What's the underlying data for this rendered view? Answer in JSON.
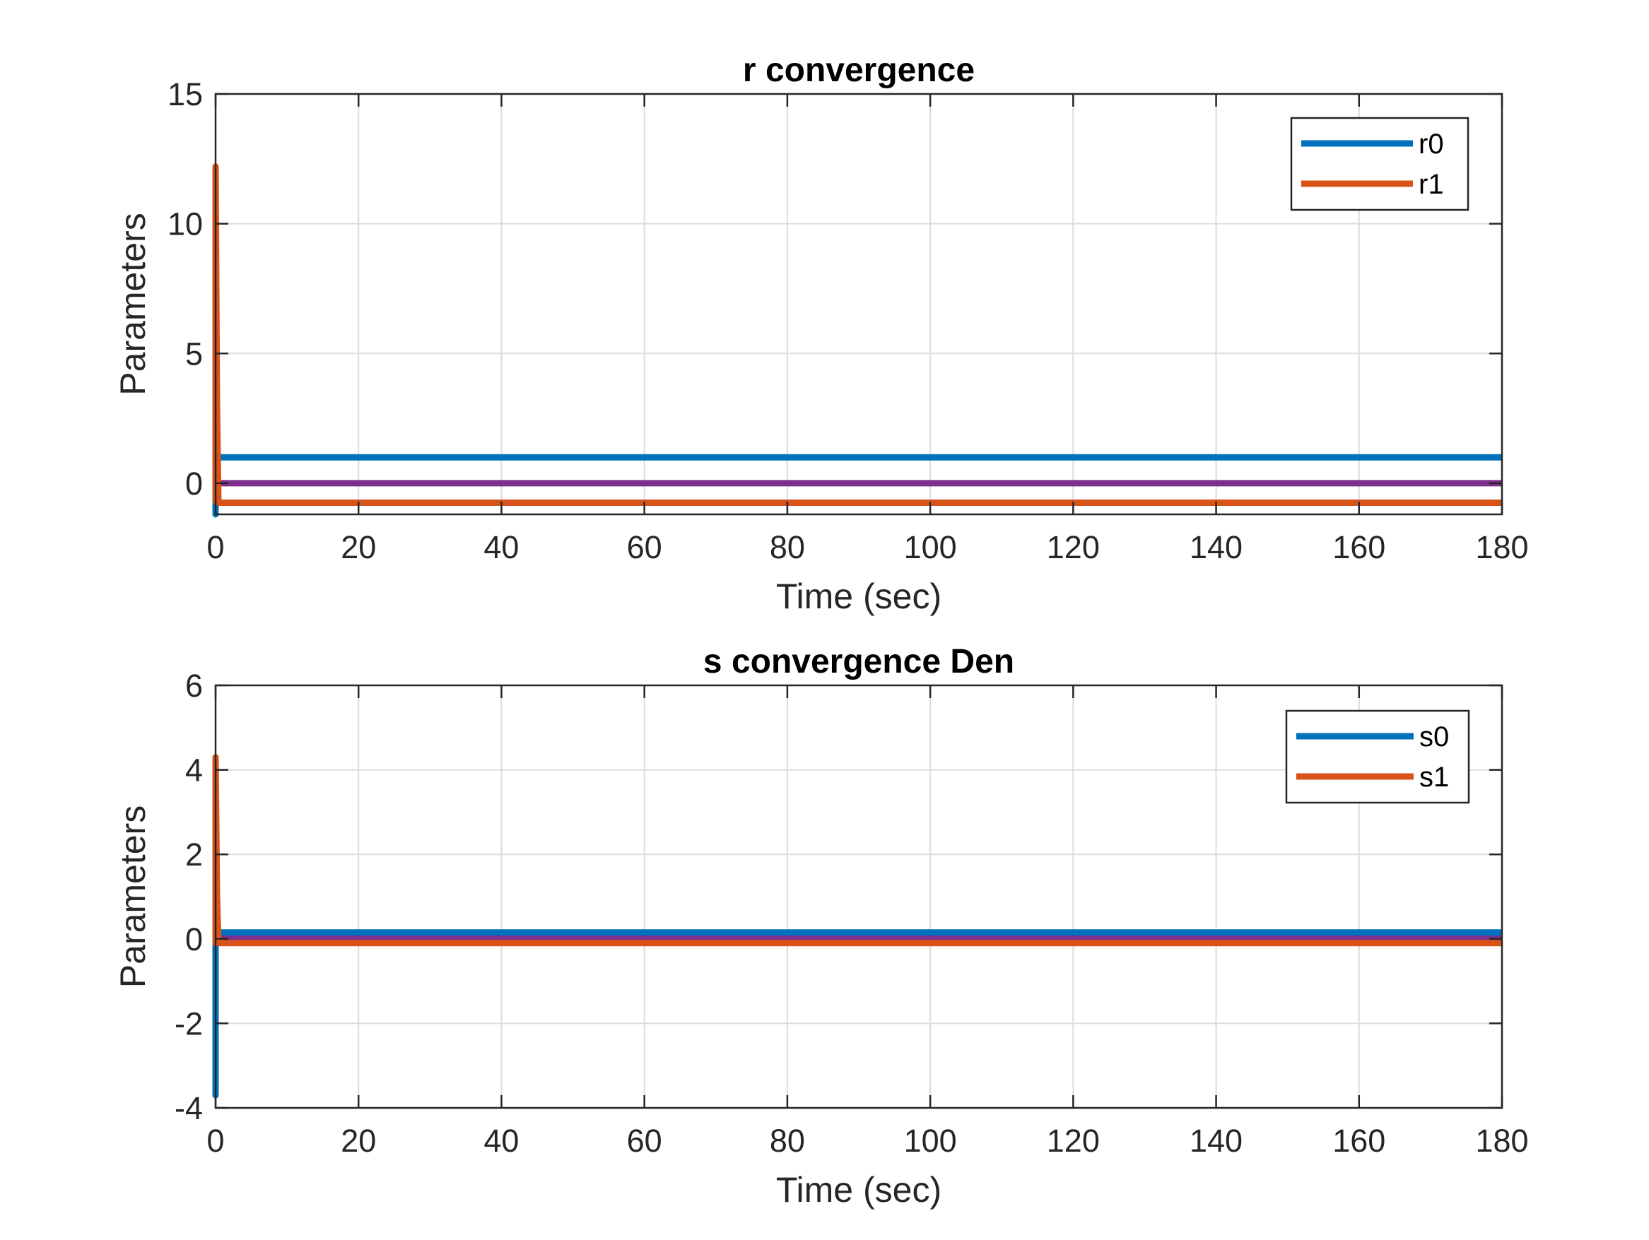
{
  "chart_data": [
    {
      "type": "line",
      "title": "r convergence",
      "xlabel": "Time (sec)",
      "ylabel": "Parameters",
      "xlim": [
        0,
        180
      ],
      "ylim": [
        -1.2,
        15
      ],
      "xticks": [
        0,
        20,
        40,
        60,
        80,
        100,
        120,
        140,
        160,
        180
      ],
      "yticks": [
        0,
        5,
        10,
        15
      ],
      "grid": true,
      "legend_position": "top-right",
      "series": [
        {
          "name": "r0",
          "color": "#0072BD",
          "legend": true,
          "x": [
            0,
            0,
            0.2,
            0.4,
            180
          ],
          "y": [
            -1.2,
            0.5,
            1.0,
            1.0,
            1.0
          ]
        },
        {
          "name": "r1",
          "color": "#D95319",
          "legend": true,
          "x": [
            0,
            0,
            0.2,
            0.4,
            180
          ],
          "y": [
            -0.7,
            12.2,
            3.0,
            -0.75,
            -0.75
          ]
        },
        {
          "name": "",
          "color": "#7E2F8E",
          "legend": false,
          "x": [
            0,
            0.4,
            180
          ],
          "y": [
            0,
            0,
            0
          ]
        }
      ]
    },
    {
      "type": "line",
      "title": "s convergence Den",
      "xlabel": "Time (sec)",
      "ylabel": "Parameters",
      "xlim": [
        0,
        180
      ],
      "ylim": [
        -4,
        6
      ],
      "xticks": [
        0,
        20,
        40,
        60,
        80,
        100,
        120,
        140,
        160,
        180
      ],
      "yticks": [
        -4,
        -2,
        0,
        2,
        4,
        6
      ],
      "grid": true,
      "legend_position": "top-right",
      "series": [
        {
          "name": "s0",
          "color": "#0072BD",
          "legend": true,
          "x": [
            0,
            0,
            0.2,
            0.4,
            180
          ],
          "y": [
            -3.7,
            0.0,
            0.15,
            0.15,
            0.15
          ]
        },
        {
          "name": "s1",
          "color": "#D95319",
          "legend": true,
          "x": [
            0,
            0,
            0.2,
            0.4,
            180
          ],
          "y": [
            -0.1,
            4.3,
            1.0,
            -0.1,
            -0.1
          ]
        },
        {
          "name": "",
          "color": "#7E2F8E",
          "legend": false,
          "x": [
            0,
            0.4,
            180
          ],
          "y": [
            0.02,
            0.02,
            0.02
          ]
        }
      ]
    }
  ]
}
